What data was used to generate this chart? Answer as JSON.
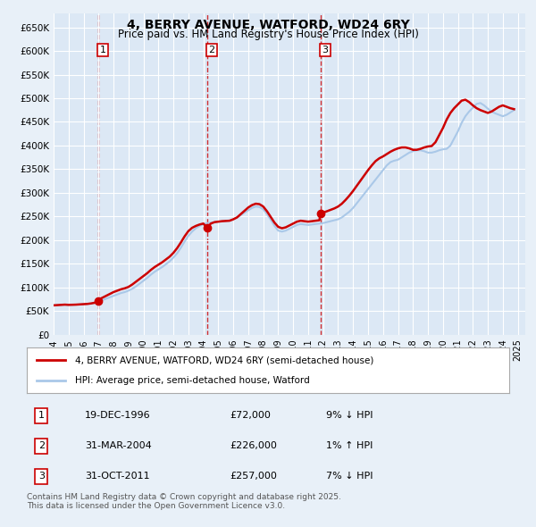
{
  "title": "4, BERRY AVENUE, WATFORD, WD24 6RY",
  "subtitle": "Price paid vs. HM Land Registry's House Price Index (HPI)",
  "ylabel": "",
  "yticks": [
    0,
    50000,
    100000,
    150000,
    200000,
    250000,
    300000,
    350000,
    400000,
    450000,
    500000,
    550000,
    600000,
    650000
  ],
  "ytick_labels": [
    "£0",
    "£50K",
    "£100K",
    "£150K",
    "£200K",
    "£250K",
    "£300K",
    "£350K",
    "£400K",
    "£450K",
    "£500K",
    "£550K",
    "£600K",
    "£650K"
  ],
  "ylim": [
    0,
    680000
  ],
  "xlim_start": 1994.0,
  "xlim_end": 2025.5,
  "background_color": "#e8f0f8",
  "plot_bg_color": "#dce8f5",
  "grid_color": "#ffffff",
  "red_line_color": "#cc0000",
  "blue_line_color": "#aac8e8",
  "marker_color": "#cc0000",
  "dashed_line_color": "#cc0000",
  "legend_label_red": "4, BERRY AVENUE, WATFORD, WD24 6RY (semi-detached house)",
  "legend_label_blue": "HPI: Average price, semi-detached house, Watford",
  "transactions": [
    {
      "num": 1,
      "date_label": "19-DEC-1996",
      "date_x": 1996.97,
      "price": 72000,
      "pct": "9%",
      "dir": "↓",
      "vline_x": 1996.97
    },
    {
      "num": 2,
      "date_label": "31-MAR-2004",
      "date_x": 2004.25,
      "price": 226000,
      "pct": "1%",
      "dir": "↑",
      "vline_x": 2004.25
    },
    {
      "num": 3,
      "date_label": "31-OCT-2011",
      "date_x": 2011.83,
      "price": 257000,
      "pct": "7%",
      "dir": "↓",
      "vline_x": 2011.83
    }
  ],
  "footnote1": "Contains HM Land Registry data © Crown copyright and database right 2025.",
  "footnote2": "This data is licensed under the Open Government Licence v3.0.",
  "hpi_data": {
    "x": [
      1994.0,
      1994.25,
      1994.5,
      1994.75,
      1995.0,
      1995.25,
      1995.5,
      1995.75,
      1996.0,
      1996.25,
      1996.5,
      1996.75,
      1997.0,
      1997.25,
      1997.5,
      1997.75,
      1998.0,
      1998.25,
      1998.5,
      1998.75,
      1999.0,
      1999.25,
      1999.5,
      1999.75,
      2000.0,
      2000.25,
      2000.5,
      2000.75,
      2001.0,
      2001.25,
      2001.5,
      2001.75,
      2002.0,
      2002.25,
      2002.5,
      2002.75,
      2003.0,
      2003.25,
      2003.5,
      2003.75,
      2004.0,
      2004.25,
      2004.5,
      2004.75,
      2005.0,
      2005.25,
      2005.5,
      2005.75,
      2006.0,
      2006.25,
      2006.5,
      2006.75,
      2007.0,
      2007.25,
      2007.5,
      2007.75,
      2008.0,
      2008.25,
      2008.5,
      2008.75,
      2009.0,
      2009.25,
      2009.5,
      2009.75,
      2010.0,
      2010.25,
      2010.5,
      2010.75,
      2011.0,
      2011.25,
      2011.5,
      2011.75,
      2012.0,
      2012.25,
      2012.5,
      2012.75,
      2013.0,
      2013.25,
      2013.5,
      2013.75,
      2014.0,
      2014.25,
      2014.5,
      2014.75,
      2015.0,
      2015.25,
      2015.5,
      2015.75,
      2016.0,
      2016.25,
      2016.5,
      2016.75,
      2017.0,
      2017.25,
      2017.5,
      2017.75,
      2018.0,
      2018.25,
      2018.5,
      2018.75,
      2019.0,
      2019.25,
      2019.5,
      2019.75,
      2020.0,
      2020.25,
      2020.5,
      2020.75,
      2021.0,
      2021.25,
      2021.5,
      2021.75,
      2022.0,
      2022.25,
      2022.5,
      2022.75,
      2023.0,
      2023.25,
      2023.5,
      2023.75,
      2024.0,
      2024.25,
      2024.5,
      2024.75
    ],
    "y": [
      62000,
      62500,
      63000,
      63500,
      63000,
      63200,
      63500,
      64000,
      64500,
      65000,
      66000,
      67500,
      70000,
      73000,
      76000,
      79000,
      82000,
      85000,
      88000,
      90000,
      93000,
      97000,
      102000,
      108000,
      114000,
      120000,
      127000,
      133000,
      138000,
      143000,
      149000,
      155000,
      163000,
      172000,
      184000,
      197000,
      209000,
      218000,
      225000,
      230000,
      234000,
      236000,
      237000,
      238000,
      239000,
      240000,
      240500,
      241000,
      244000,
      248000,
      253000,
      258000,
      263000,
      268000,
      271000,
      270000,
      265000,
      255000,
      243000,
      230000,
      220000,
      218000,
      220000,
      224000,
      228000,
      232000,
      234000,
      233000,
      232000,
      233000,
      234000,
      235000,
      236000,
      238000,
      240000,
      242000,
      244000,
      248000,
      254000,
      260000,
      268000,
      278000,
      288000,
      298000,
      308000,
      318000,
      328000,
      338000,
      348000,
      358000,
      365000,
      368000,
      370000,
      375000,
      380000,
      385000,
      388000,
      390000,
      390000,
      388000,
      385000,
      385000,
      387000,
      390000,
      392000,
      393000,
      400000,
      415000,
      430000,
      448000,
      462000,
      472000,
      480000,
      488000,
      490000,
      485000,
      478000,
      472000,
      468000,
      465000,
      462000,
      465000,
      470000,
      475000
    ]
  },
  "price_paid_data": {
    "x": [
      1994.0,
      1994.25,
      1994.5,
      1994.75,
      1995.0,
      1995.25,
      1995.5,
      1995.75,
      1996.0,
      1996.25,
      1996.5,
      1996.75,
      1996.97,
      1997.0,
      1997.25,
      1997.5,
      1997.75,
      1998.0,
      1998.25,
      1998.5,
      1998.75,
      1999.0,
      1999.25,
      1999.5,
      1999.75,
      2000.0,
      2000.25,
      2000.5,
      2000.75,
      2001.0,
      2001.25,
      2001.5,
      2001.75,
      2002.0,
      2002.25,
      2002.5,
      2002.75,
      2003.0,
      2003.25,
      2003.5,
      2003.75,
      2004.0,
      2004.25,
      2004.5,
      2004.75,
      2005.0,
      2005.25,
      2005.5,
      2005.75,
      2006.0,
      2006.25,
      2006.5,
      2006.75,
      2007.0,
      2007.25,
      2007.5,
      2007.75,
      2008.0,
      2008.25,
      2008.5,
      2008.75,
      2009.0,
      2009.25,
      2009.5,
      2009.75,
      2010.0,
      2010.25,
      2010.5,
      2010.75,
      2011.0,
      2011.25,
      2011.5,
      2011.75,
      2011.83,
      2012.0,
      2012.25,
      2012.5,
      2012.75,
      2013.0,
      2013.25,
      2013.5,
      2013.75,
      2014.0,
      2014.25,
      2014.5,
      2014.75,
      2015.0,
      2015.25,
      2015.5,
      2015.75,
      2016.0,
      2016.25,
      2016.5,
      2016.75,
      2017.0,
      2017.25,
      2017.5,
      2017.75,
      2018.0,
      2018.25,
      2018.5,
      2018.75,
      2019.0,
      2019.25,
      2019.5,
      2019.75,
      2020.0,
      2020.25,
      2020.5,
      2020.75,
      2021.0,
      2021.25,
      2021.5,
      2021.75,
      2022.0,
      2022.25,
      2022.5,
      2022.75,
      2023.0,
      2023.25,
      2023.5,
      2023.75,
      2024.0,
      2024.25,
      2024.5,
      2024.75
    ],
    "y": [
      62000,
      62500,
      63000,
      63500,
      63000,
      63200,
      63500,
      64000,
      64500,
      65000,
      66000,
      67500,
      72000,
      74000,
      78000,
      82000,
      86000,
      90000,
      93000,
      96000,
      98000,
      101000,
      106000,
      112000,
      118000,
      124000,
      130000,
      137000,
      143000,
      148000,
      153000,
      159000,
      165000,
      173000,
      183000,
      195000,
      208000,
      219000,
      226000,
      230000,
      233000,
      235000,
      226000,
      235000,
      238000,
      239000,
      240000,
      240500,
      241000,
      244000,
      248000,
      255000,
      262000,
      269000,
      274000,
      277000,
      276000,
      271000,
      261000,
      249000,
      237000,
      228000,
      225000,
      227000,
      231000,
      235000,
      239000,
      241000,
      240000,
      239000,
      240000,
      241000,
      242000,
      257000,
      258000,
      261000,
      264000,
      267000,
      271000,
      277000,
      285000,
      294000,
      304000,
      315000,
      326000,
      337000,
      348000,
      358000,
      367000,
      373000,
      377000,
      382000,
      387000,
      391000,
      394000,
      396000,
      396000,
      394000,
      391000,
      391000,
      393000,
      396000,
      398000,
      399000,
      407000,
      422000,
      437000,
      455000,
      469000,
      479000,
      487000,
      495000,
      497000,
      492000,
      485000,
      479000,
      475000,
      472000,
      469000,
      472000,
      477000,
      482000,
      485000,
      482000,
      479000,
      477000
    ]
  }
}
